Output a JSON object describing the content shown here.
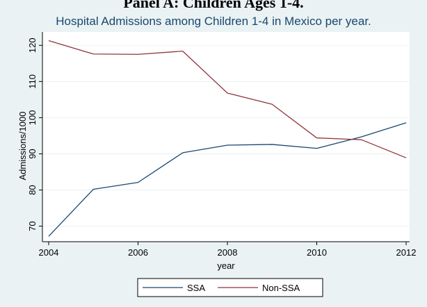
{
  "panel_title": "Panel A: Children Ages 1-4.",
  "chart_data": {
    "type": "line",
    "title": "Hospital Admissions among Children 1-4 in Mexico per year.",
    "xlabel": "year",
    "ylabel": "Admissions/1000",
    "x": [
      2004,
      2005,
      2006,
      2007,
      2008,
      2009,
      2010,
      2011,
      2012
    ],
    "xticks": [
      2004,
      2006,
      2008,
      2010,
      2012
    ],
    "yticks": [
      70,
      80,
      90,
      100,
      110,
      120
    ],
    "xlim": [
      2004,
      2012
    ],
    "ylim": [
      65.7,
      123.7
    ],
    "grid": true,
    "legend_position": "bottom",
    "series": [
      {
        "name": "SSA",
        "color": "#1a476f",
        "values": [
          67.2,
          80.2,
          82.1,
          90.3,
          92.4,
          92.6,
          91.5,
          94.7,
          98.6
        ]
      },
      {
        "name": "Non-SSA",
        "color": "#90353b",
        "values": [
          121.3,
          117.6,
          117.5,
          118.4,
          106.8,
          103.7,
          94.4,
          93.9,
          88.9
        ]
      }
    ]
  }
}
